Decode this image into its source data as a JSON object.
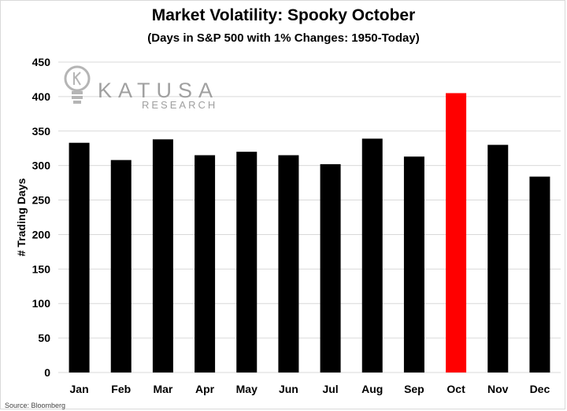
{
  "chart_data": {
    "type": "bar",
    "title": "Market Volatility: Spooky October",
    "subtitle": "(Days in S&P 500 with 1% Changes: 1950-Today)",
    "ylabel": "# Trading Days",
    "xlabel": "",
    "categories": [
      "Jan",
      "Feb",
      "Mar",
      "Apr",
      "May",
      "Jun",
      "Jul",
      "Aug",
      "Sep",
      "Oct",
      "Nov",
      "Dec"
    ],
    "values": [
      333,
      308,
      338,
      315,
      320,
      315,
      302,
      339,
      313,
      405,
      330,
      284
    ],
    "ylim": [
      0,
      450
    ],
    "yticks": [
      "0",
      "50",
      "100",
      "150",
      "200",
      "250",
      "300",
      "350",
      "400",
      "450"
    ],
    "bar_color": "#000000",
    "highlight_color": "#ff0000",
    "highlight_category": "Oct",
    "grid": true
  },
  "logo": {
    "name": "KATUSA",
    "tagline": "RESEARCH",
    "icon": "lightbulb-icon"
  },
  "source": "Source: Bloomberg"
}
